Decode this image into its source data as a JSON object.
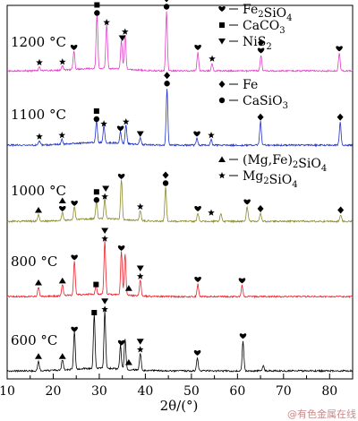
{
  "chart_data": {
    "type": "line",
    "xlabel": "2θ/(°)",
    "xlim": [
      10,
      85
    ],
    "xticks": [
      10,
      20,
      30,
      40,
      50,
      60,
      70,
      80
    ],
    "grid": false,
    "colors": {
      "600 °C": "#000000",
      "800 °C": "#e8202a",
      "1000 °C": "#8c8a2a",
      "1100 °C": "#1e32c8",
      "1200 °C": "#e040c8"
    },
    "series": [
      {
        "name": "600 °C",
        "peaks": [
          [
            16.8,
            0.15
          ],
          [
            22.0,
            0.15
          ],
          [
            24.6,
            0.55
          ],
          [
            28.9,
            0.8
          ],
          [
            31.2,
            0.85
          ],
          [
            34.6,
            0.35
          ],
          [
            35.6,
            0.45
          ],
          [
            38.9,
            0.25
          ],
          [
            51.3,
            0.2
          ],
          [
            61.2,
            0.45
          ],
          [
            65.6,
            0.08
          ]
        ]
      },
      {
        "name": "800 °C",
        "peaks": [
          [
            16.8,
            0.15
          ],
          [
            22.0,
            0.18
          ],
          [
            24.6,
            0.55
          ],
          [
            29.3,
            0.12
          ],
          [
            31.2,
            0.85
          ],
          [
            34.8,
            0.7
          ],
          [
            35.6,
            0.65
          ],
          [
            38.9,
            0.25
          ],
          [
            51.4,
            0.2
          ],
          [
            61.0,
            0.18
          ]
        ]
      },
      {
        "name": "1000 °C",
        "peaks": [
          [
            16.8,
            0.1
          ],
          [
            22.0,
            0.12
          ],
          [
            24.6,
            0.2
          ],
          [
            29.4,
            0.25
          ],
          [
            31.2,
            0.3
          ],
          [
            34.8,
            0.6
          ],
          [
            38.9,
            0.15
          ],
          [
            44.4,
            0.5
          ],
          [
            51.4,
            0.12
          ],
          [
            56.4,
            0.12
          ],
          [
            62.1,
            0.22
          ],
          [
            65.0,
            0.12
          ],
          [
            82.4,
            0.1
          ]
        ]
      },
      {
        "name": "1100 °C",
        "peaks": [
          [
            17.0,
            0.06
          ],
          [
            21.9,
            0.08
          ],
          [
            29.4,
            0.32
          ],
          [
            31.0,
            0.25
          ],
          [
            34.6,
            0.18
          ],
          [
            35.8,
            0.28
          ],
          [
            38.9,
            0.1
          ],
          [
            44.7,
            0.85
          ],
          [
            51.2,
            0.1
          ],
          [
            54.3,
            0.08
          ],
          [
            65.0,
            0.35
          ],
          [
            82.3,
            0.35
          ]
        ]
      },
      {
        "name": "1200 °C",
        "peaks": [
          [
            17.0,
            0.06
          ],
          [
            22.0,
            0.07
          ],
          [
            24.5,
            0.3
          ],
          [
            29.5,
            0.85
          ],
          [
            31.6,
            0.7
          ],
          [
            34.8,
            0.45
          ],
          [
            35.6,
            0.55
          ],
          [
            44.6,
            0.95
          ],
          [
            51.4,
            0.3
          ],
          [
            54.5,
            0.12
          ],
          [
            65.1,
            0.25
          ],
          [
            82.1,
            0.28
          ]
        ]
      }
    ],
    "legend": [
      {
        "group": "1200 °C",
        "entries": [
          {
            "marker": "heart",
            "label": "Fe2SiO4",
            "main": "Fe",
            "sub1": "2",
            "mid": "SiO",
            "sub2": "4"
          },
          {
            "marker": "square",
            "label": "CaCO3",
            "main": "CaCO",
            "sub1": "3",
            "mid": "",
            "sub2": ""
          },
          {
            "marker": "triangle-down",
            "label": "NiS2",
            "main": "NiS",
            "sub1": "2",
            "mid": "",
            "sub2": ""
          }
        ]
      },
      {
        "group": "1100 °C",
        "entries": [
          {
            "marker": "diamond",
            "label": "Fe",
            "main": "Fe",
            "sub1": "",
            "mid": "",
            "sub2": ""
          },
          {
            "marker": "circle",
            "label": "CaSiO3",
            "main": "CaSiO",
            "sub1": "3",
            "mid": "",
            "sub2": ""
          }
        ]
      },
      {
        "group": "1000 °C",
        "entries": [
          {
            "marker": "triangle-up",
            "label": "(Mg,Fe)2SiO4",
            "main": "(Mg,Fe)",
            "sub1": "2",
            "mid": "SiO",
            "sub2": "4"
          },
          {
            "marker": "star",
            "label": "Mg2SiO4",
            "main": "Mg",
            "sub1": "2",
            "mid": "SiO",
            "sub2": "4"
          }
        ]
      }
    ],
    "markers": {
      "1200 °C": [
        [
          17.0,
          "star"
        ],
        [
          22.0,
          "star"
        ],
        [
          24.5,
          "heart"
        ],
        [
          29.5,
          "circle"
        ],
        [
          29.5,
          "square"
        ],
        [
          29.8,
          "triangle-down"
        ],
        [
          31.6,
          "star"
        ],
        [
          35.0,
          "triangle-down"
        ],
        [
          35.6,
          "star"
        ],
        [
          44.6,
          "circle"
        ],
        [
          44.6,
          "diamond"
        ],
        [
          51.4,
          "heart"
        ],
        [
          54.5,
          "star"
        ],
        [
          65.1,
          "heart"
        ],
        [
          65.1,
          "diamond"
        ],
        [
          82.1,
          "heart"
        ]
      ],
      "1100 °C": [
        [
          17.0,
          "star"
        ],
        [
          21.9,
          "star"
        ],
        [
          29.4,
          "circle"
        ],
        [
          29.4,
          "square"
        ],
        [
          31.0,
          "star"
        ],
        [
          34.6,
          "heart"
        ],
        [
          35.8,
          "star"
        ],
        [
          38.9,
          "triangle-down"
        ],
        [
          44.7,
          "circle"
        ],
        [
          44.7,
          "diamond"
        ],
        [
          51.2,
          "heart"
        ],
        [
          54.3,
          "star"
        ],
        [
          65.0,
          "diamond"
        ],
        [
          82.3,
          "diamond"
        ]
      ],
      "1000 °C": [
        [
          16.8,
          "triangle-up"
        ],
        [
          22.0,
          "heart"
        ],
        [
          22.0,
          "triangle-up"
        ],
        [
          24.6,
          "heart"
        ],
        [
          29.4,
          "circle"
        ],
        [
          29.4,
          "square"
        ],
        [
          31.2,
          "star"
        ],
        [
          31.4,
          "triangle-down"
        ],
        [
          34.8,
          "heart"
        ],
        [
          38.9,
          "star"
        ],
        [
          44.4,
          "circle"
        ],
        [
          44.4,
          "diamond"
        ],
        [
          51.4,
          "heart"
        ],
        [
          54.3,
          "star"
        ],
        [
          62.1,
          "heart"
        ],
        [
          65.0,
          "diamond"
        ],
        [
          82.4,
          "diamond"
        ]
      ],
      "800 °C": [
        [
          16.8,
          "triangle-up"
        ],
        [
          22.0,
          "triangle-up"
        ],
        [
          24.6,
          "heart"
        ],
        [
          29.3,
          "square"
        ],
        [
          31.2,
          "star"
        ],
        [
          31.2,
          "triangle-down"
        ],
        [
          34.8,
          "heart"
        ],
        [
          36.4,
          "triangle-up"
        ],
        [
          38.9,
          "star"
        ],
        [
          38.9,
          "triangle-down"
        ],
        [
          51.4,
          "heart"
        ],
        [
          61.0,
          "heart"
        ]
      ],
      "600 °C": [
        [
          16.8,
          "triangle-up"
        ],
        [
          22.0,
          "triangle-up"
        ],
        [
          24.6,
          "heart"
        ],
        [
          28.9,
          "square"
        ],
        [
          31.2,
          "star"
        ],
        [
          31.2,
          "triangle-down"
        ],
        [
          34.8,
          "heart"
        ],
        [
          36.4,
          "triangle-up"
        ],
        [
          38.9,
          "star"
        ],
        [
          38.9,
          "triangle-down"
        ],
        [
          51.3,
          "heart"
        ],
        [
          61.2,
          "heart"
        ]
      ]
    }
  },
  "watermark": "@有色金属在线"
}
